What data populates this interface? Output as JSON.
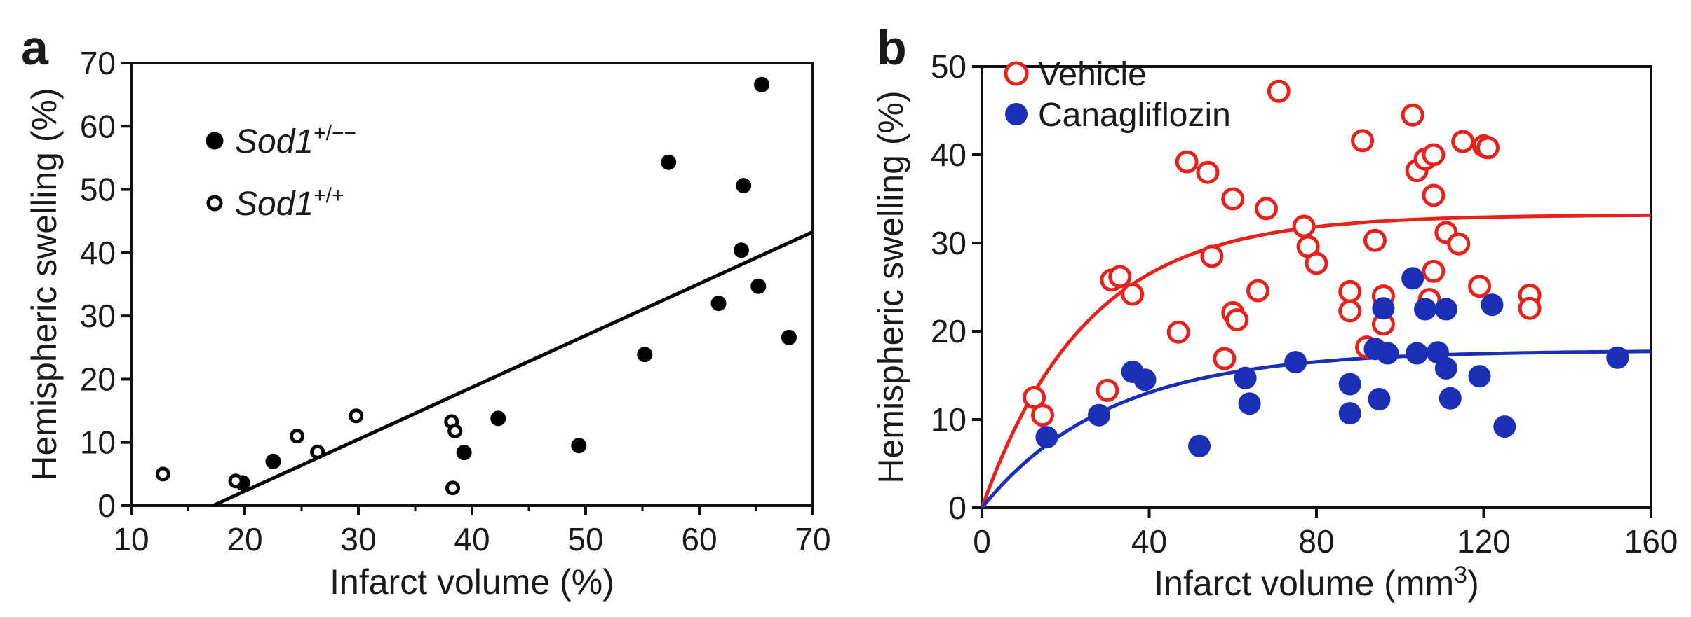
{
  "chart_data": [
    {
      "panel": "a",
      "type": "scatter",
      "title": "",
      "xlabel": "Infarct volume (%)",
      "ylabel": "Hemispheric swelling (%)",
      "xlim": [
        10,
        70
      ],
      "ylim": [
        0,
        70
      ],
      "xticks": [
        10,
        20,
        30,
        40,
        50,
        60,
        70
      ],
      "yticks": [
        0,
        10,
        20,
        30,
        40,
        50,
        60,
        70
      ],
      "grid": false,
      "legend_position": "top-left",
      "series": [
        {
          "name": "Sod1",
          "sup": "+/−−",
          "marker": "filled-circle",
          "color": "#000000",
          "points": [
            [
              19.8,
              3.6
            ],
            [
              22.5,
              7.0
            ],
            [
              39.3,
              8.4
            ],
            [
              42.3,
              13.8
            ],
            [
              49.4,
              9.5
            ],
            [
              55.2,
              23.9
            ],
            [
              57.3,
              54.3
            ],
            [
              61.7,
              32.0
            ],
            [
              63.7,
              40.4
            ],
            [
              63.9,
              50.6
            ],
            [
              65.2,
              34.7
            ],
            [
              65.5,
              66.6
            ],
            [
              67.9,
              26.6
            ]
          ]
        },
        {
          "name": "Sod1",
          "sup": "+/+",
          "marker": "open-circle",
          "color": "#000000",
          "points": [
            [
              12.8,
              5.0
            ],
            [
              19.2,
              3.9
            ],
            [
              24.6,
              11.0
            ],
            [
              26.4,
              8.5
            ],
            [
              29.8,
              14.2
            ],
            [
              38.2,
              13.3
            ],
            [
              38.5,
              11.8
            ],
            [
              38.3,
              2.8
            ]
          ]
        }
      ],
      "fit": {
        "kind": "linear",
        "x": [
          17.2,
          70.0
        ],
        "y": [
          0.0,
          43.3
        ],
        "color": "#000000"
      }
    },
    {
      "panel": "b",
      "type": "scatter",
      "title": "",
      "xlabel": "Infarct volume (mm",
      "xlabel_sup": "3",
      "xlabel_end": ")",
      "ylabel": "Hemispheric swelling (%)",
      "xlim": [
        0,
        160
      ],
      "ylim": [
        0,
        50
      ],
      "xticks": [
        0,
        40,
        80,
        120,
        160
      ],
      "yticks": [
        0,
        10,
        20,
        30,
        40,
        50
      ],
      "grid": false,
      "legend_position": "top-left",
      "series": [
        {
          "name": "Vehicle",
          "marker": "open-circle",
          "color": "#e8221b",
          "points": [
            [
              12.5,
              12.5
            ],
            [
              14.5,
              10.5
            ],
            [
              30.0,
              13.3
            ],
            [
              31.0,
              25.8
            ],
            [
              33.0,
              26.2
            ],
            [
              36.0,
              24.2
            ],
            [
              47.0,
              19.9
            ],
            [
              49.0,
              39.2
            ],
            [
              54.0,
              38.0
            ],
            [
              55.0,
              28.5
            ],
            [
              58.0,
              16.9
            ],
            [
              60.0,
              22.1
            ],
            [
              61.0,
              21.3
            ],
            [
              60.0,
              35.0
            ],
            [
              66.0,
              24.6
            ],
            [
              68.0,
              33.9
            ],
            [
              71.0,
              47.2
            ],
            [
              77.0,
              31.9
            ],
            [
              78.0,
              29.6
            ],
            [
              80.0,
              27.7
            ],
            [
              88.0,
              24.5
            ],
            [
              88.0,
              22.3
            ],
            [
              91.0,
              41.6
            ],
            [
              92.0,
              18.2
            ],
            [
              94.0,
              30.3
            ],
            [
              96.0,
              24.0
            ],
            [
              96.0,
              20.8
            ],
            [
              103.0,
              44.5
            ],
            [
              104.0,
              38.2
            ],
            [
              106.0,
              39.5
            ],
            [
              107.0,
              23.6
            ],
            [
              108.0,
              35.4
            ],
            [
              108.0,
              40.0
            ],
            [
              108.0,
              26.8
            ],
            [
              111.0,
              31.2
            ],
            [
              114.0,
              29.9
            ],
            [
              115.0,
              41.5
            ],
            [
              119.0,
              25.1
            ],
            [
              120.0,
              41.0
            ],
            [
              121.0,
              40.8
            ],
            [
              131.0,
              24.1
            ],
            [
              131.0,
              22.6
            ]
          ]
        },
        {
          "name": "Canagliflozin",
          "marker": "filled-circle",
          "color": "#1a2fb5",
          "points": [
            [
              15.5,
              8.0
            ],
            [
              28.0,
              10.5
            ],
            [
              36.0,
              15.4
            ],
            [
              39.0,
              14.5
            ],
            [
              52.0,
              7.0
            ],
            [
              63.0,
              14.7
            ],
            [
              64.0,
              11.8
            ],
            [
              75.0,
              16.5
            ],
            [
              88.0,
              14.0
            ],
            [
              88.0,
              10.7
            ],
            [
              94.0,
              18.0
            ],
            [
              95.0,
              12.3
            ],
            [
              96.0,
              22.6
            ],
            [
              97.0,
              17.5
            ],
            [
              103.0,
              26.0
            ],
            [
              104.0,
              17.5
            ],
            [
              106.0,
              22.5
            ],
            [
              109.0,
              17.6
            ],
            [
              111.0,
              22.5
            ],
            [
              111.0,
              15.8
            ],
            [
              112.0,
              12.4
            ],
            [
              119.0,
              14.9
            ],
            [
              122.0,
              23.0
            ],
            [
              125.0,
              9.2
            ],
            [
              152.0,
              17.0
            ]
          ]
        }
      ],
      "fits": [
        {
          "series": "Vehicle",
          "kind": "exponential",
          "plateau": 33.2,
          "k": 0.04,
          "color": "#e8221b"
        },
        {
          "series": "Canagliflozin",
          "kind": "exponential",
          "plateau": 17.8,
          "k": 0.033,
          "color": "#1a2fb5"
        }
      ]
    }
  ]
}
